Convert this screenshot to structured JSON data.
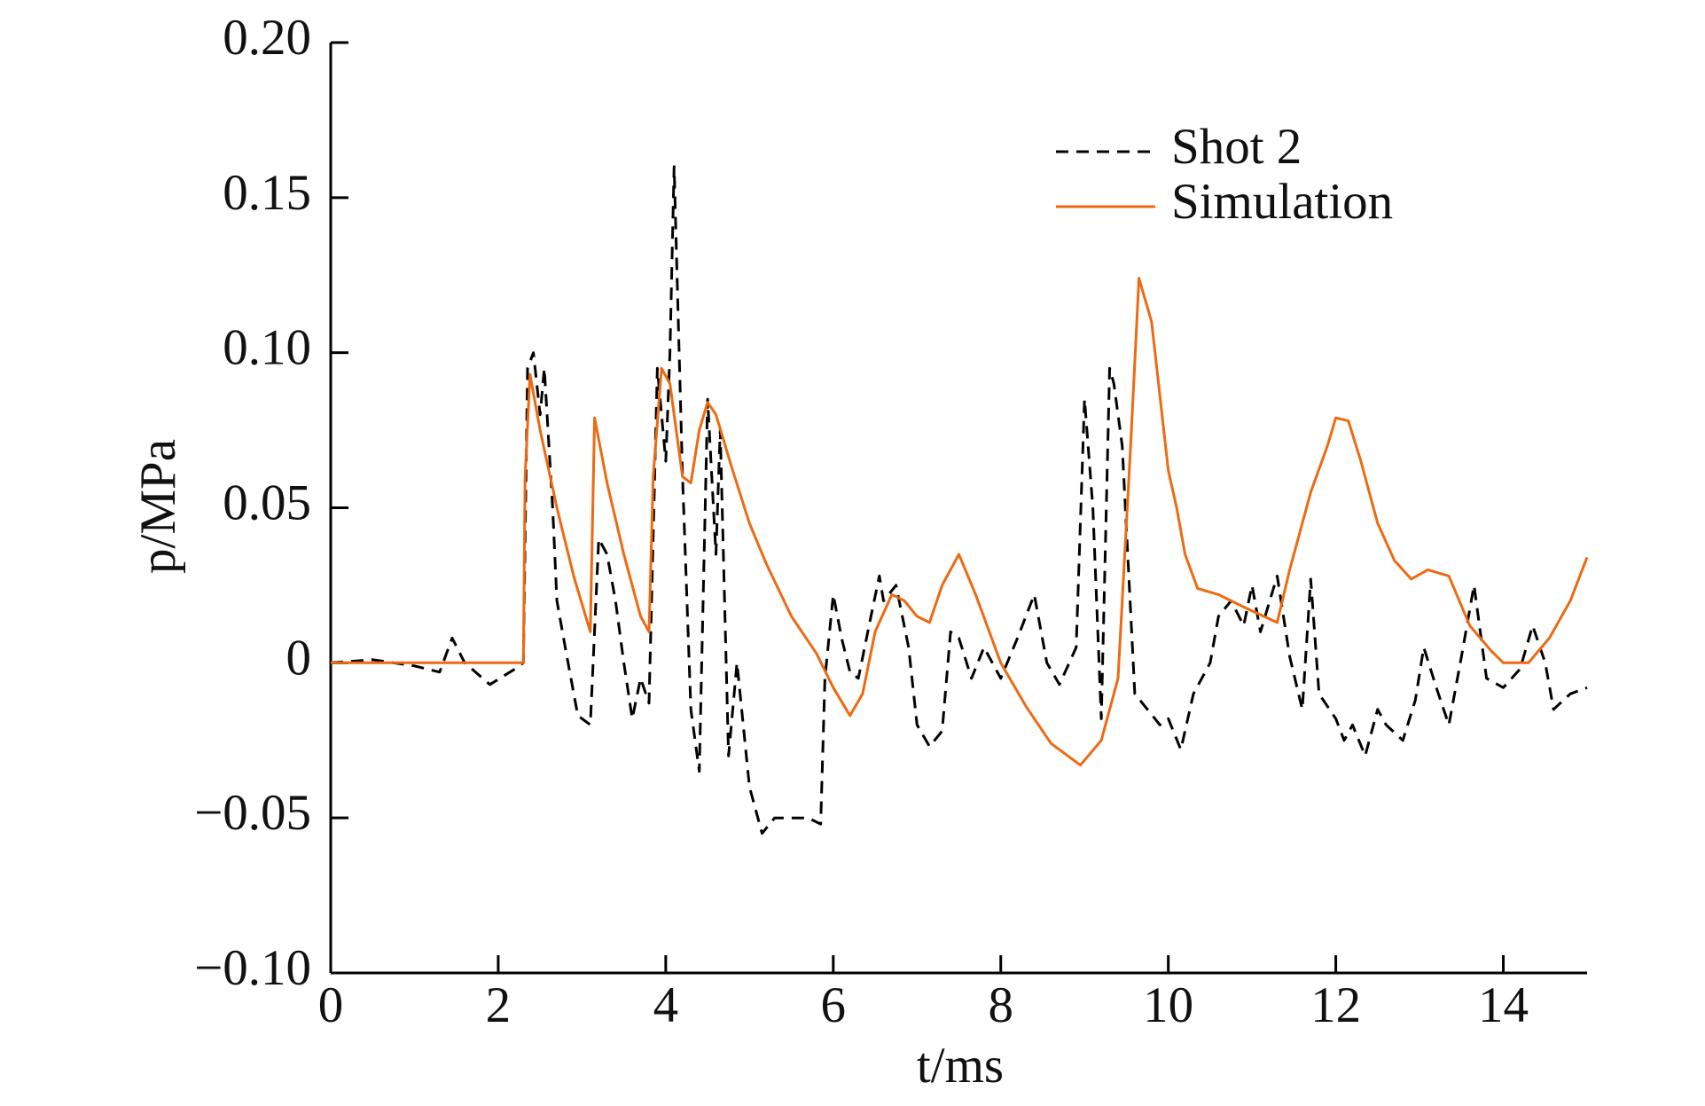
{
  "chart_data": {
    "type": "line",
    "xlabel": "t/ms",
    "ylabel": "p/MPa",
    "xlim": [
      0,
      15
    ],
    "xticks": [
      0,
      2,
      4,
      6,
      8,
      10,
      12,
      14
    ],
    "ylim": [
      -0.1,
      0.2
    ],
    "yticks": [
      {
        "value": -0.1,
        "label": "−0.10"
      },
      {
        "value": -0.05,
        "label": "−0.05"
      },
      0,
      0.05,
      {
        "value": 0.1,
        "label": "0.10"
      },
      0.15,
      {
        "value": 0.2,
        "label": "0.20"
      }
    ],
    "legend": "upper right",
    "series": [
      {
        "name": "Shot 2",
        "color": "#000000",
        "style": "dashed",
        "x": [
          0,
          0.5,
          1.0,
          1.3,
          1.45,
          1.6,
          1.9,
          2.2,
          2.3,
          2.35,
          2.42,
          2.5,
          2.55,
          2.65,
          2.7,
          2.8,
          2.95,
          3.1,
          3.2,
          3.3,
          3.4,
          3.5,
          3.6,
          3.7,
          3.8,
          3.9,
          4.0,
          4.05,
          4.1,
          4.2,
          4.3,
          4.4,
          4.5,
          4.6,
          4.65,
          4.75,
          4.85,
          5.0,
          5.15,
          5.3,
          5.5,
          5.7,
          5.85,
          5.9,
          6.0,
          6.1,
          6.2,
          6.3,
          6.45,
          6.55,
          6.6,
          6.75,
          6.9,
          7.0,
          7.15,
          7.3,
          7.4,
          7.5,
          7.65,
          7.8,
          8.0,
          8.2,
          8.4,
          8.55,
          8.7,
          8.9,
          9.0,
          9.1,
          9.2,
          9.3,
          9.35,
          9.45,
          9.6,
          9.75,
          9.9,
          10.0,
          10.15,
          10.3,
          10.5,
          10.6,
          10.75,
          10.9,
          11.0,
          11.1,
          11.3,
          11.45,
          11.6,
          11.7,
          11.8,
          12.0,
          12.1,
          12.2,
          12.35,
          12.5,
          12.6,
          12.8,
          12.95,
          13.05,
          13.2,
          13.35,
          13.5,
          13.65,
          13.8,
          14.0,
          14.2,
          14.35,
          14.5,
          14.6,
          14.8,
          15.0
        ],
        "values": [
          0,
          0.001,
          -0.001,
          -0.003,
          0.008,
          0.0,
          -0.007,
          -0.002,
          0.0,
          0.095,
          0.1,
          0.08,
          0.095,
          0.05,
          0.02,
          0.005,
          -0.017,
          -0.02,
          0.04,
          0.035,
          0.02,
          0.0,
          -0.018,
          -0.005,
          -0.013,
          0.095,
          0.065,
          0.1,
          0.16,
          0.06,
          -0.015,
          -0.035,
          0.085,
          0.035,
          0.075,
          -0.03,
          0.0,
          -0.04,
          -0.055,
          -0.05,
          -0.05,
          -0.05,
          -0.052,
          -0.005,
          0.022,
          0.008,
          -0.003,
          -0.005,
          0.015,
          0.028,
          0.02,
          0.025,
          0.005,
          -0.02,
          -0.027,
          -0.022,
          0.01,
          0.008,
          -0.005,
          0.005,
          -0.005,
          0.008,
          0.022,
          0.0,
          -0.007,
          0.005,
          0.085,
          0.05,
          -0.018,
          0.095,
          0.09,
          0.07,
          -0.01,
          -0.015,
          -0.02,
          -0.018,
          -0.028,
          -0.01,
          0.0,
          0.015,
          0.02,
          0.012,
          0.025,
          0.01,
          0.028,
          0.002,
          -0.015,
          0.027,
          -0.01,
          -0.018,
          -0.025,
          -0.02,
          -0.03,
          -0.015,
          -0.02,
          -0.025,
          -0.012,
          0.005,
          -0.008,
          -0.02,
          0.002,
          0.025,
          -0.005,
          -0.008,
          -0.002,
          0.012,
          0.0,
          -0.015,
          -0.01,
          -0.008
        ]
      },
      {
        "name": "Simulation",
        "color": "#ee6a12",
        "style": "solid",
        "x": [
          0,
          2.3,
          2.32,
          2.38,
          2.5,
          2.7,
          2.9,
          3.1,
          3.15,
          3.3,
          3.5,
          3.7,
          3.8,
          3.85,
          3.95,
          4.05,
          4.2,
          4.3,
          4.4,
          4.5,
          4.6,
          4.8,
          5.0,
          5.2,
          5.5,
          5.8,
          6.0,
          6.2,
          6.35,
          6.5,
          6.7,
          6.85,
          7.0,
          7.15,
          7.3,
          7.5,
          7.7,
          8.0,
          8.3,
          8.6,
          8.95,
          9.2,
          9.4,
          9.55,
          9.65,
          9.8,
          10.0,
          10.1,
          10.2,
          10.35,
          10.6,
          10.9,
          11.3,
          11.45,
          11.7,
          11.9,
          12.0,
          12.15,
          12.3,
          12.5,
          12.7,
          12.9,
          13.1,
          13.35,
          13.6,
          13.85,
          14.0,
          14.3,
          14.55,
          14.8,
          15.0
        ],
        "values": [
          0,
          0,
          0.06,
          0.093,
          0.075,
          0.05,
          0.028,
          0.01,
          0.079,
          0.058,
          0.035,
          0.015,
          0.01,
          0.06,
          0.095,
          0.09,
          0.06,
          0.058,
          0.075,
          0.084,
          0.08,
          0.062,
          0.045,
          0.032,
          0.015,
          0.003,
          -0.008,
          -0.017,
          -0.01,
          0.01,
          0.022,
          0.02,
          0.015,
          0.013,
          0.025,
          0.035,
          0.022,
          0.0,
          -0.014,
          -0.026,
          -0.033,
          -0.025,
          -0.005,
          0.07,
          0.124,
          0.11,
          0.062,
          0.05,
          0.035,
          0.024,
          0.022,
          0.018,
          0.013,
          0.03,
          0.055,
          0.07,
          0.079,
          0.078,
          0.065,
          0.045,
          0.033,
          0.027,
          0.03,
          0.028,
          0.012,
          0.004,
          0.0,
          0.0,
          0.008,
          0.02,
          0.034
        ]
      }
    ]
  }
}
